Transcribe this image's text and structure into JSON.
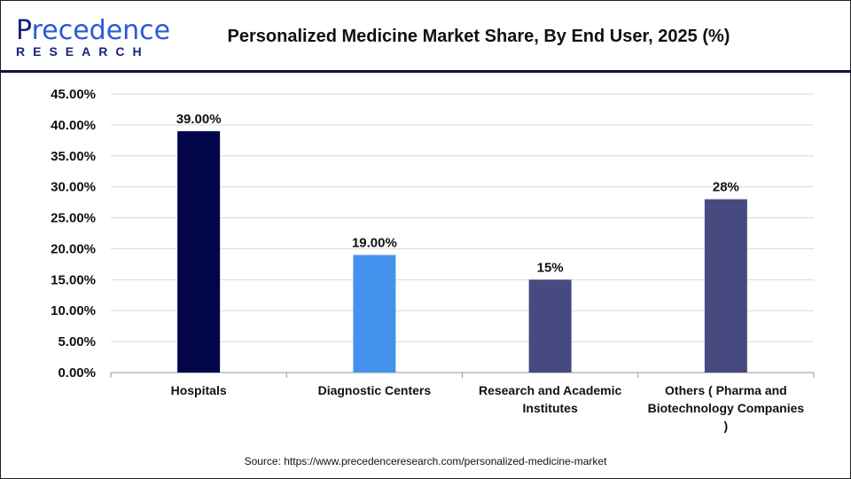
{
  "logo": {
    "text_top": "Precedence",
    "text_bottom": "RESEARCH"
  },
  "source": "Source: https://www.precedenceresearch.com/personalized-medicine-market",
  "chart_data": {
    "type": "bar",
    "title": "Personalized Medicine Market Share, By End User, 2025 (%)",
    "categories": [
      "Hospitals",
      "Diagnostic Centers",
      "Research and Academic Institutes",
      "Others ( Pharma and Biotechnology Companies )"
    ],
    "category_lines": [
      [
        "Hospitals"
      ],
      [
        "Diagnostic Centers"
      ],
      [
        "Research and Academic",
        "Institutes"
      ],
      [
        "Others ( Pharma and",
        "Biotechnology Companies",
        ")"
      ]
    ],
    "values": [
      39,
      19,
      15,
      28
    ],
    "data_labels": [
      "39.00%",
      "19.00%",
      "15%",
      "28%"
    ],
    "colors": [
      "#020549",
      "#4592ee",
      "#474a81",
      "#474a81"
    ],
    "yticks": [
      "0.00%",
      "5.00%",
      "10.00%",
      "15.00%",
      "20.00%",
      "25.00%",
      "30.00%",
      "35.00%",
      "40.00%",
      "45.00%"
    ],
    "ylim": [
      0,
      45
    ],
    "grid": true,
    "xlabel": "",
    "ylabel": ""
  }
}
